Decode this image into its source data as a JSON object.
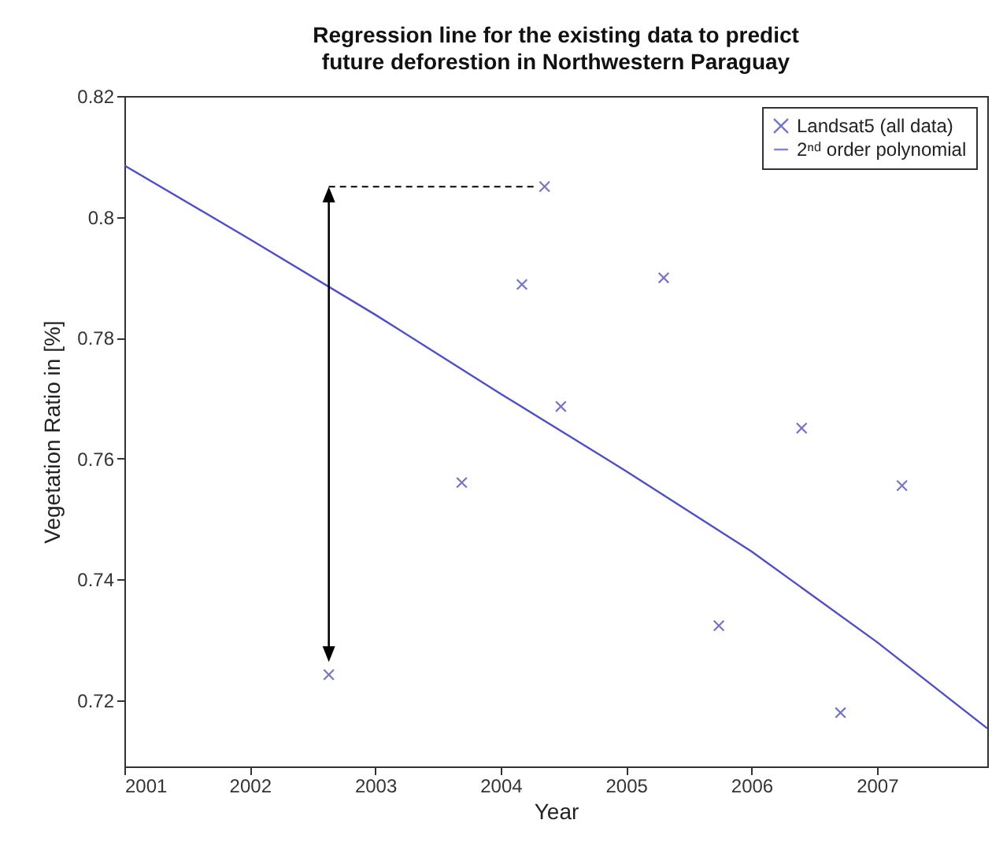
{
  "chart_data": {
    "type": "scatter",
    "title": "Regression line for the existing data to predict\nfuture deforestion in Northwestern Paraguay",
    "xlabel": "Year",
    "ylabel": "Vegetation Ratio in [%]",
    "xlim": [
      2001,
      2007.88
    ],
    "xticks": [
      2001,
      2002,
      2003,
      2004,
      2005,
      2006,
      2007
    ],
    "ylim": [
      0.709,
      0.82
    ],
    "yticks": [
      0.72,
      0.74,
      0.76,
      0.78,
      0.8,
      0.82
    ],
    "grid": false,
    "legend": "top right",
    "series": [
      {
        "name": "Landsat5 (all data)",
        "marker": "cross",
        "color": "#3a3ab8",
        "x": [
          2002.63,
          2003.69,
          2004.17,
          2004.35,
          2004.48,
          2005.3,
          2005.74,
          2006.4,
          2006.71,
          2007.2
        ],
        "values": [
          0.7242,
          0.756,
          0.7888,
          0.805,
          0.7686,
          0.7899,
          0.7323,
          0.765,
          0.7179,
          0.7555
        ]
      },
      {
        "name": "2ⁿᵈ order polynomial",
        "type": "line",
        "color": "#4d4dd1",
        "x": [
          2001,
          2002,
          2003,
          2004,
          2005,
          2006,
          2007,
          2007.88
        ],
        "values": [
          0.8085,
          0.7963,
          0.7838,
          0.7707,
          0.7579,
          0.7446,
          0.7296,
          0.7153
        ]
      }
    ]
  }
}
